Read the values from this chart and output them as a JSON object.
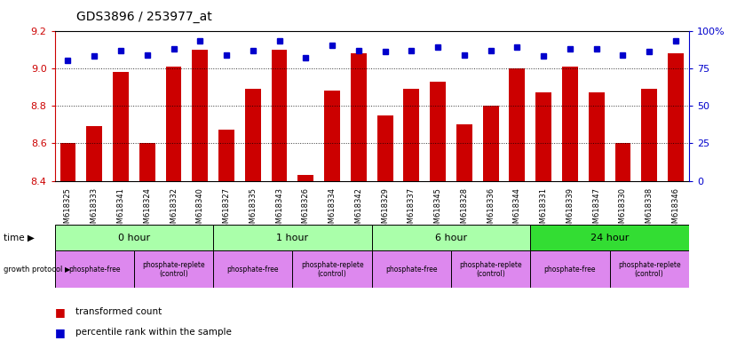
{
  "title": "GDS3896 / 253977_at",
  "samples": [
    "GSM618325",
    "GSM618333",
    "GSM618341",
    "GSM618324",
    "GSM618332",
    "GSM618340",
    "GSM618327",
    "GSM618335",
    "GSM618343",
    "GSM618326",
    "GSM618334",
    "GSM618342",
    "GSM618329",
    "GSM618337",
    "GSM618345",
    "GSM618328",
    "GSM618336",
    "GSM618344",
    "GSM618331",
    "GSM618339",
    "GSM618347",
    "GSM618330",
    "GSM618338",
    "GSM618346"
  ],
  "transformed_count": [
    8.6,
    8.69,
    8.98,
    8.6,
    9.01,
    9.1,
    8.67,
    8.89,
    9.1,
    8.43,
    8.88,
    9.08,
    8.75,
    8.89,
    8.93,
    8.7,
    8.8,
    9.0,
    8.87,
    9.01,
    8.87,
    8.6,
    8.89,
    9.08
  ],
  "percentile_rank": [
    80,
    83,
    87,
    84,
    88,
    93,
    84,
    87,
    93,
    82,
    90,
    87,
    86,
    87,
    89,
    84,
    87,
    89,
    83,
    88,
    88,
    84,
    86,
    93
  ],
  "ylim_left": [
    8.4,
    9.2
  ],
  "ylim_right": [
    0,
    100
  ],
  "yticks_left": [
    8.4,
    8.6,
    8.8,
    9.0,
    9.2
  ],
  "yticks_right": [
    0,
    25,
    50,
    75,
    100
  ],
  "ytick_labels_right": [
    "0",
    "25",
    "50",
    "75",
    "100%"
  ],
  "bar_color": "#cc0000",
  "square_color": "#0000cc",
  "time_labels": [
    "0 hour",
    "1 hour",
    "6 hour",
    "24 hour"
  ],
  "time_colors": [
    "#aaffaa",
    "#aaffaa",
    "#aaffaa",
    "#33dd33"
  ],
  "time_boundaries": [
    0,
    6,
    12,
    18,
    24
  ],
  "proto_labels": [
    "phosphate-free",
    "phosphate-replete\n(control)",
    "phosphate-free",
    "phosphate-replete\n(control)",
    "phosphate-free",
    "phosphate-replete\n(control)",
    "phosphate-free",
    "phosphate-replete\n(control)"
  ],
  "proto_boundaries": [
    0,
    3,
    6,
    9,
    12,
    15,
    18,
    21,
    24
  ],
  "proto_color": "#dd88ee",
  "bg_color": "#ffffff",
  "plot_bg": "#ffffff",
  "label_color_left": "#cc0000",
  "label_color_right": "#0000cc",
  "dotted_yticks": [
    8.6,
    8.8,
    9.0
  ]
}
